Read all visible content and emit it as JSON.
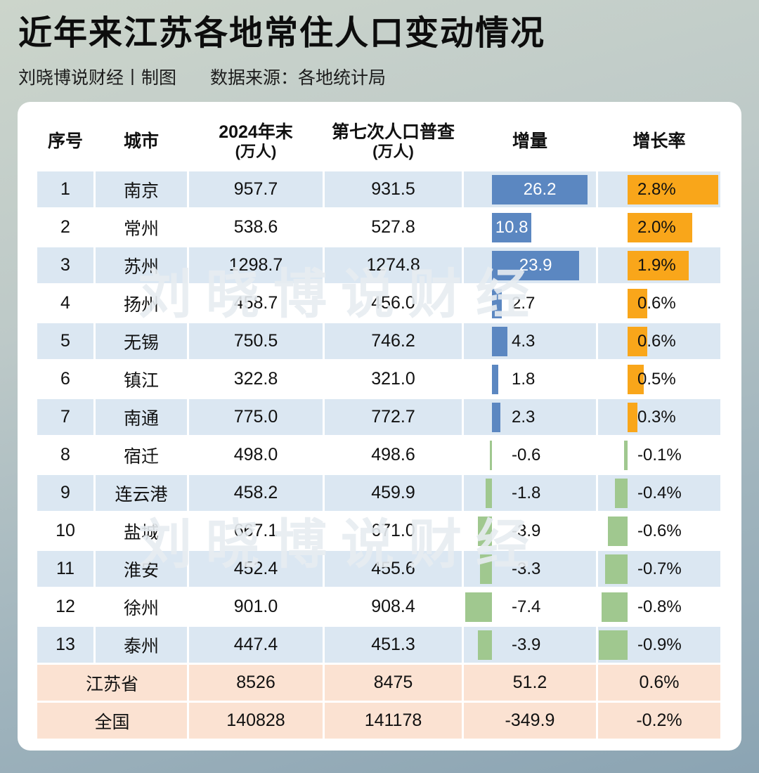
{
  "title": "近年来江苏各地常住人口变动情况",
  "byline": "刘晓博说财经丨制图",
  "source": "数据来源：各地统计局",
  "watermark": "刘晓博说财经",
  "colors": {
    "positive_delta_bar": "#5b87c1",
    "positive_rate_bar": "#f9a61a",
    "negative_bar": "#a0c88f",
    "alt_row": "#dbe7f2",
    "summary_row": "#fbe2d2",
    "card": "#ffffff"
  },
  "chart_data": {
    "type": "table",
    "title": "近年来江苏各地常住人口变动情况",
    "legend_position": "none",
    "grid": false,
    "columns": [
      {
        "label": "序号",
        "sub": ""
      },
      {
        "label": "城市",
        "sub": ""
      },
      {
        "label": "2024年末",
        "sub": "(万人)"
      },
      {
        "label": "第七次人口普查",
        "sub": "(万人)"
      },
      {
        "label": "增量",
        "sub": ""
      },
      {
        "label": "增长率",
        "sub": ""
      }
    ],
    "rows": [
      {
        "no": "1",
        "city": "南京",
        "pop_2024": "957.7",
        "census_7th": "931.5",
        "delta": 26.2,
        "delta_label": "26.2",
        "rate": 2.8,
        "rate_label": "2.8%",
        "summary": false
      },
      {
        "no": "2",
        "city": "常州",
        "pop_2024": "538.6",
        "census_7th": "527.8",
        "delta": 10.8,
        "delta_label": "10.8",
        "rate": 2.0,
        "rate_label": "2.0%",
        "summary": false
      },
      {
        "no": "3",
        "city": "苏州",
        "pop_2024": "1298.7",
        "census_7th": "1274.8",
        "delta": 23.9,
        "delta_label": "23.9",
        "rate": 1.9,
        "rate_label": "1.9%",
        "summary": false
      },
      {
        "no": "4",
        "city": "扬州",
        "pop_2024": "458.7",
        "census_7th": "456.0",
        "delta": 2.7,
        "delta_label": "2.7",
        "rate": 0.6,
        "rate_label": "0.6%",
        "summary": false
      },
      {
        "no": "5",
        "city": "无锡",
        "pop_2024": "750.5",
        "census_7th": "746.2",
        "delta": 4.3,
        "delta_label": "4.3",
        "rate": 0.6,
        "rate_label": "0.6%",
        "summary": false
      },
      {
        "no": "6",
        "city": "镇江",
        "pop_2024": "322.8",
        "census_7th": "321.0",
        "delta": 1.8,
        "delta_label": "1.8",
        "rate": 0.5,
        "rate_label": "0.5%",
        "summary": false
      },
      {
        "no": "7",
        "city": "南通",
        "pop_2024": "775.0",
        "census_7th": "772.7",
        "delta": 2.3,
        "delta_label": "2.3",
        "rate": 0.3,
        "rate_label": "0.3%",
        "summary": false
      },
      {
        "no": "8",
        "city": "宿迁",
        "pop_2024": "498.0",
        "census_7th": "498.6",
        "delta": -0.6,
        "delta_label": "-0.6",
        "rate": -0.1,
        "rate_label": "-0.1%",
        "summary": false
      },
      {
        "no": "9",
        "city": "连云港",
        "pop_2024": "458.2",
        "census_7th": "459.9",
        "delta": -1.8,
        "delta_label": "-1.8",
        "rate": -0.4,
        "rate_label": "-0.4%",
        "summary": false
      },
      {
        "no": "10",
        "city": "盐城",
        "pop_2024": "667.1",
        "census_7th": "671.0",
        "delta": -3.9,
        "delta_label": "-3.9",
        "rate": -0.6,
        "rate_label": "-0.6%",
        "summary": false
      },
      {
        "no": "11",
        "city": "淮安",
        "pop_2024": "452.4",
        "census_7th": "455.6",
        "delta": -3.3,
        "delta_label": "-3.3",
        "rate": -0.7,
        "rate_label": "-0.7%",
        "summary": false
      },
      {
        "no": "12",
        "city": "徐州",
        "pop_2024": "901.0",
        "census_7th": "908.4",
        "delta": -7.4,
        "delta_label": "-7.4",
        "rate": -0.8,
        "rate_label": "-0.8%",
        "summary": false
      },
      {
        "no": "13",
        "city": "泰州",
        "pop_2024": "447.4",
        "census_7th": "451.3",
        "delta": -3.9,
        "delta_label": "-3.9",
        "rate": -0.9,
        "rate_label": "-0.9%",
        "summary": false
      },
      {
        "no": "",
        "city": "江苏省",
        "pop_2024": "8526",
        "census_7th": "8475",
        "delta": 51.2,
        "delta_label": "51.2",
        "rate": 0.6,
        "rate_label": "0.6%",
        "summary": true
      },
      {
        "no": "",
        "city": "全国",
        "pop_2024": "140828",
        "census_7th": "141178",
        "delta": -349.9,
        "delta_label": "-349.9",
        "rate": -0.2,
        "rate_label": "-0.2%",
        "summary": true
      }
    ]
  }
}
